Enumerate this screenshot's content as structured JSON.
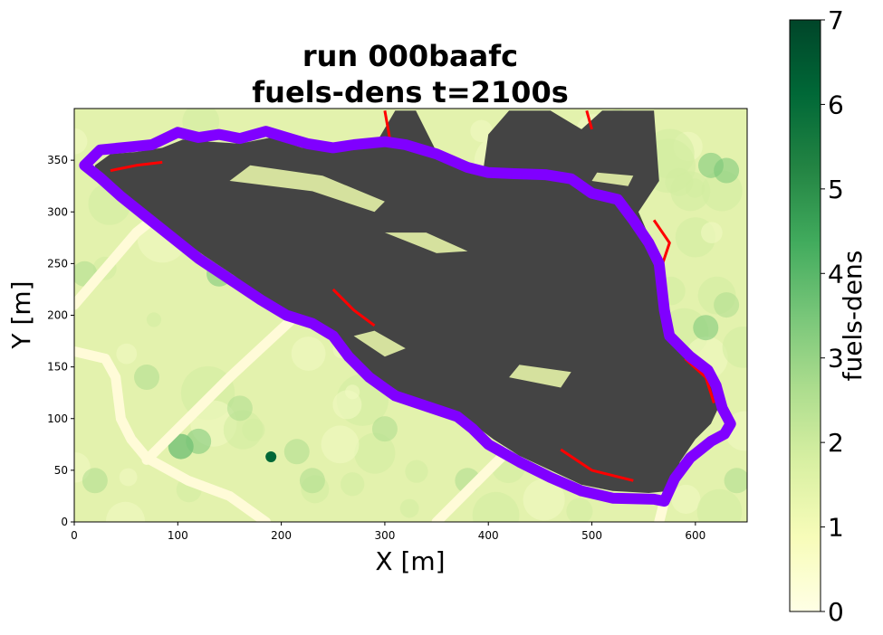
{
  "chart_data": {
    "type": "heatmap",
    "title_lines": [
      "run 000baafc",
      "fuels-dens t=2100s"
    ],
    "xlabel": "X [m]",
    "ylabel": "Y [m]",
    "xlim": [
      0,
      650
    ],
    "ylim": [
      0,
      400
    ],
    "x_ticks": [
      0,
      100,
      200,
      300,
      400,
      500,
      600
    ],
    "y_ticks": [
      0,
      50,
      100,
      150,
      200,
      250,
      300,
      350
    ],
    "colorbar": {
      "label": "fuels-dens",
      "range": [
        0,
        7
      ],
      "ticks": [
        0,
        1,
        2,
        3,
        4,
        5,
        6,
        7
      ],
      "colormap": "Greens",
      "colors": [
        "#ffffe5",
        "#f7fcb9",
        "#d9f0a3",
        "#addd8e",
        "#78c679",
        "#41ab5d",
        "#238443",
        "#006837",
        "#004529"
      ]
    },
    "burned_color": "#444444",
    "active_fire_color": "#ff0000",
    "perimeter_color": "#8000ff",
    "road_color": "#fffbd8",
    "perimeter": [
      [
        10,
        345
      ],
      [
        25,
        360
      ],
      [
        55,
        363
      ],
      [
        75,
        365
      ],
      [
        100,
        377
      ],
      [
        120,
        372
      ],
      [
        140,
        375
      ],
      [
        160,
        371
      ],
      [
        185,
        378
      ],
      [
        205,
        372
      ],
      [
        225,
        366
      ],
      [
        250,
        362
      ],
      [
        270,
        365
      ],
      [
        300,
        368
      ],
      [
        320,
        365
      ],
      [
        350,
        356
      ],
      [
        380,
        343
      ],
      [
        400,
        338
      ],
      [
        425,
        337
      ],
      [
        455,
        336
      ],
      [
        480,
        332
      ],
      [
        500,
        318
      ],
      [
        525,
        312
      ],
      [
        540,
        292
      ],
      [
        555,
        270
      ],
      [
        565,
        250
      ],
      [
        570,
        205
      ],
      [
        575,
        180
      ],
      [
        595,
        160
      ],
      [
        612,
        147
      ],
      [
        620,
        132
      ],
      [
        626,
        110
      ],
      [
        634,
        95
      ],
      [
        628,
        85
      ],
      [
        615,
        78
      ],
      [
        595,
        62
      ],
      [
        580,
        42
      ],
      [
        570,
        20
      ],
      [
        560,
        22
      ],
      [
        520,
        23
      ],
      [
        490,
        30
      ],
      [
        460,
        43
      ],
      [
        430,
        58
      ],
      [
        400,
        75
      ],
      [
        385,
        90
      ],
      [
        370,
        102
      ],
      [
        340,
        112
      ],
      [
        310,
        122
      ],
      [
        285,
        140
      ],
      [
        265,
        160
      ],
      [
        250,
        180
      ],
      [
        230,
        192
      ],
      [
        205,
        200
      ],
      [
        180,
        215
      ],
      [
        150,
        235
      ],
      [
        120,
        255
      ],
      [
        95,
        275
      ],
      [
        70,
        295
      ],
      [
        45,
        315
      ],
      [
        25,
        333
      ],
      [
        10,
        345
      ]
    ],
    "burned_region": [
      [
        20,
        345
      ],
      [
        35,
        356
      ],
      [
        60,
        358
      ],
      [
        85,
        362
      ],
      [
        105,
        370
      ],
      [
        130,
        368
      ],
      [
        160,
        366
      ],
      [
        190,
        372
      ],
      [
        220,
        362
      ],
      [
        260,
        360
      ],
      [
        290,
        364
      ],
      [
        310,
        398
      ],
      [
        330,
        398
      ],
      [
        350,
        358
      ],
      [
        380,
        344
      ],
      [
        395,
        340
      ],
      [
        400,
        375
      ],
      [
        420,
        398
      ],
      [
        460,
        398
      ],
      [
        490,
        380
      ],
      [
        510,
        398
      ],
      [
        560,
        398
      ],
      [
        565,
        330
      ],
      [
        545,
        300
      ],
      [
        558,
        270
      ],
      [
        565,
        210
      ],
      [
        572,
        180
      ],
      [
        605,
        152
      ],
      [
        618,
        132
      ],
      [
        622,
        110
      ],
      [
        615,
        95
      ],
      [
        600,
        80
      ],
      [
        585,
        58
      ],
      [
        575,
        30
      ],
      [
        555,
        28
      ],
      [
        520,
        30
      ],
      [
        490,
        36
      ],
      [
        460,
        50
      ],
      [
        430,
        64
      ],
      [
        405,
        80
      ],
      [
        385,
        95
      ],
      [
        355,
        110
      ],
      [
        315,
        125
      ],
      [
        285,
        145
      ],
      [
        262,
        168
      ],
      [
        245,
        185
      ],
      [
        215,
        198
      ],
      [
        185,
        215
      ],
      [
        155,
        238
      ],
      [
        125,
        258
      ],
      [
        95,
        280
      ],
      [
        65,
        300
      ],
      [
        40,
        320
      ],
      [
        20,
        338
      ]
    ],
    "unburned_patches": [
      [
        [
          150,
          330
        ],
        [
          230,
          320
        ],
        [
          290,
          300
        ],
        [
          300,
          310
        ],
        [
          240,
          335
        ],
        [
          170,
          345
        ]
      ],
      [
        [
          300,
          280
        ],
        [
          350,
          260
        ],
        [
          380,
          262
        ],
        [
          340,
          280
        ]
      ],
      [
        [
          270,
          180
        ],
        [
          300,
          160
        ],
        [
          320,
          168
        ],
        [
          290,
          185
        ]
      ],
      [
        [
          420,
          140
        ],
        [
          470,
          130
        ],
        [
          480,
          145
        ],
        [
          430,
          152
        ]
      ],
      [
        [
          500,
          330
        ],
        [
          535,
          325
        ],
        [
          540,
          335
        ],
        [
          505,
          338
        ]
      ]
    ],
    "active_fire_lines": [
      [
        [
          35,
          340
        ],
        [
          60,
          345
        ],
        [
          85,
          348
        ]
      ],
      [
        [
          250,
          225
        ],
        [
          270,
          205
        ],
        [
          290,
          190
        ]
      ],
      [
        [
          560,
          292
        ],
        [
          575,
          270
        ],
        [
          565,
          240
        ]
      ],
      [
        [
          590,
          158
        ],
        [
          610,
          140
        ],
        [
          618,
          115
        ]
      ],
      [
        [
          470,
          70
        ],
        [
          500,
          50
        ],
        [
          540,
          40
        ]
      ],
      [
        [
          300,
          398
        ],
        [
          305,
          370
        ]
      ],
      [
        [
          495,
          398
        ],
        [
          500,
          380
        ]
      ]
    ],
    "roads": [
      [
        [
          0,
          210
        ],
        [
          60,
          280
        ],
        [
          110,
          320
        ]
      ],
      [
        [
          0,
          165
        ],
        [
          30,
          158
        ],
        [
          40,
          140
        ],
        [
          45,
          100
        ],
        [
          55,
          80
        ],
        [
          70,
          62
        ],
        [
          110,
          40
        ],
        [
          150,
          25
        ],
        [
          185,
          0
        ]
      ],
      [
        [
          70,
          60
        ],
        [
          150,
          140
        ],
        [
          220,
          205
        ],
        [
          280,
          265
        ]
      ],
      [
        [
          350,
          0
        ],
        [
          400,
          50
        ],
        [
          450,
          100
        ],
        [
          470,
          120
        ]
      ],
      [
        [
          565,
          0
        ],
        [
          575,
          40
        ]
      ]
    ],
    "green_spots": [
      {
        "x": 190,
        "y": 63,
        "v": 6.5
      },
      {
        "x": 103,
        "y": 73,
        "v": 4.0
      },
      {
        "x": 120,
        "y": 78,
        "v": 3.8
      },
      {
        "x": 215,
        "y": 68,
        "v": 3.0
      },
      {
        "x": 610,
        "y": 188,
        "v": 3.2
      },
      {
        "x": 630,
        "y": 210,
        "v": 3.0
      },
      {
        "x": 615,
        "y": 345,
        "v": 3.5
      },
      {
        "x": 630,
        "y": 340,
        "v": 3.3
      },
      {
        "x": 140,
        "y": 240,
        "v": 3.2
      },
      {
        "x": 160,
        "y": 110,
        "v": 2.8
      },
      {
        "x": 70,
        "y": 140,
        "v": 2.6
      },
      {
        "x": 10,
        "y": 240,
        "v": 2.4
      },
      {
        "x": 20,
        "y": 40,
        "v": 2.4
      },
      {
        "x": 380,
        "y": 40,
        "v": 2.5
      },
      {
        "x": 640,
        "y": 40,
        "v": 2.3
      },
      {
        "x": 230,
        "y": 40,
        "v": 2.5
      },
      {
        "x": 300,
        "y": 90,
        "v": 2.4
      }
    ]
  }
}
